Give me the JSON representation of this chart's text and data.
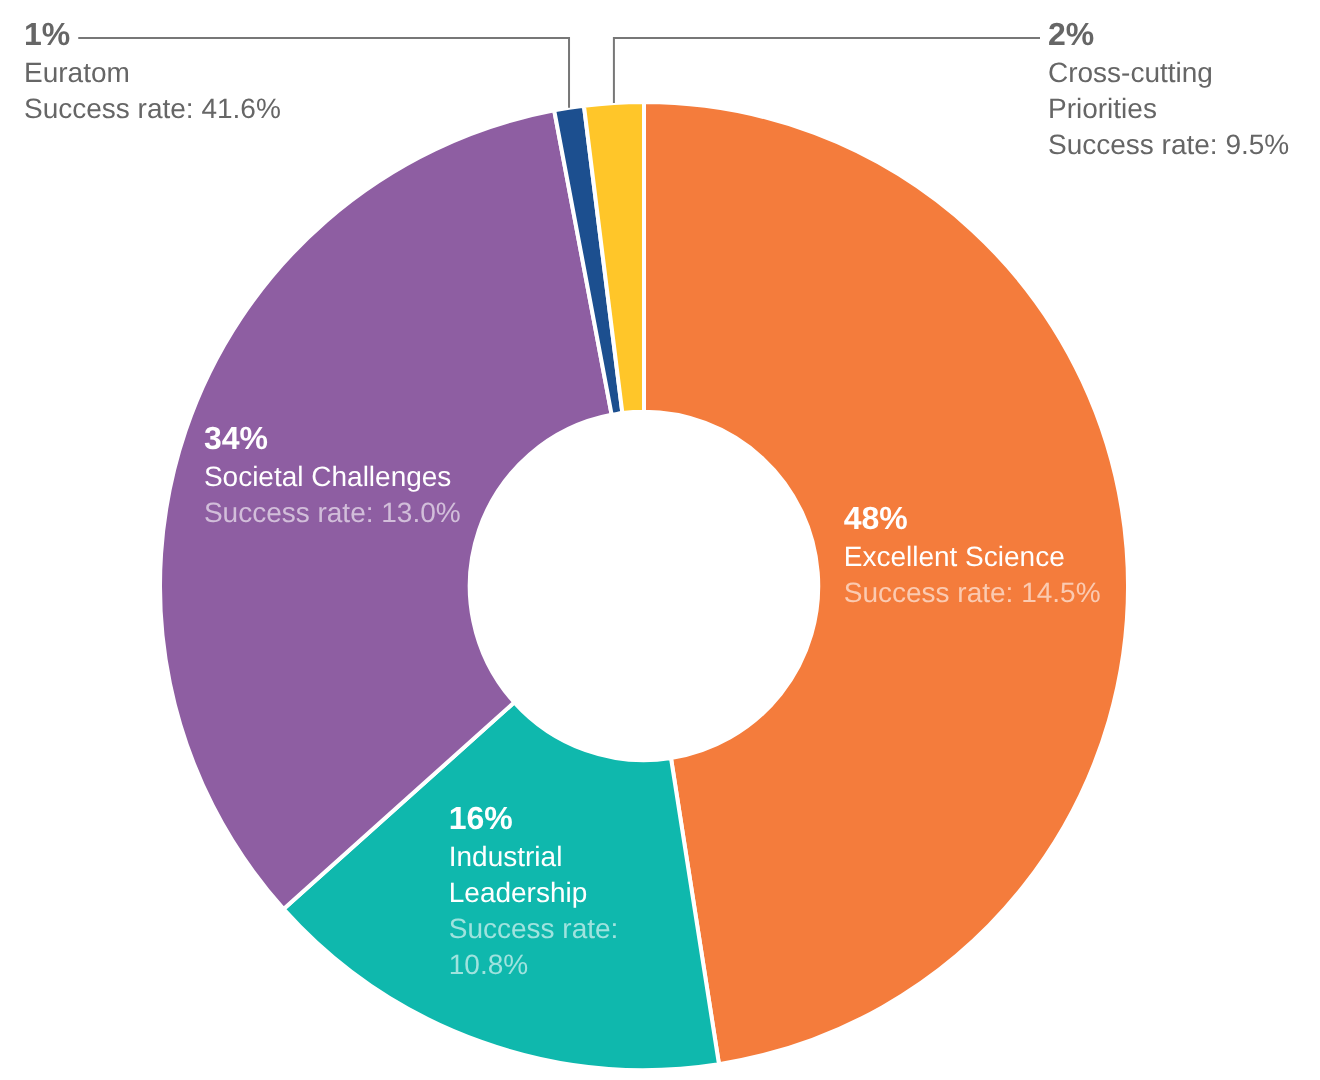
{
  "chart_data": {
    "type": "donut",
    "categories": [
      "Excellent Science",
      "Industrial Leadership",
      "Societal Challenges",
      "Euratom",
      "Cross-cutting Priorities"
    ],
    "values": [
      48,
      16,
      34,
      1,
      2
    ],
    "colors": [
      "#f47c3c",
      "#0fb8ad",
      "#8e5ea2",
      "#1c4f8f",
      "#ffc629"
    ],
    "value_labels": [
      "48%",
      "16%",
      "34%",
      "1%",
      "2%"
    ],
    "annotations": [
      "Success rate: 14.5%",
      "Success rate: 10.8%",
      "Success rate: 13.0%",
      "Success rate: 41.6%",
      "Success rate: 9.5%"
    ],
    "legend": false
  }
}
